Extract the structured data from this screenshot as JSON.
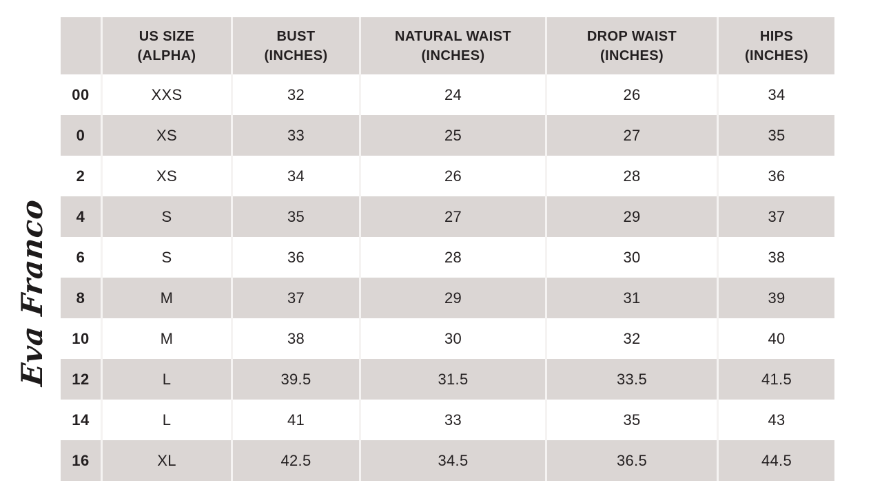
{
  "brand": {
    "name": "Eva Franco"
  },
  "table": {
    "columns": [
      {
        "name": "us-size-numeric",
        "label": ""
      },
      {
        "name": "us-size-alpha",
        "label": "US SIZE\n(ALPHA)"
      },
      {
        "name": "bust",
        "label": "BUST\n(INCHES)"
      },
      {
        "name": "natural-waist",
        "label": "NATURAL WAIST\n(INCHES)"
      },
      {
        "name": "drop-waist",
        "label": "DROP WAIST\n(INCHES)"
      },
      {
        "name": "hips",
        "label": "HIPS\n(INCHES)"
      }
    ],
    "rows": [
      {
        "cells": [
          "00",
          "XXS",
          "32",
          "24",
          "26",
          "34"
        ]
      },
      {
        "cells": [
          "0",
          "XS",
          "33",
          "25",
          "27",
          "35"
        ]
      },
      {
        "cells": [
          "2",
          "XS",
          "34",
          "26",
          "28",
          "36"
        ]
      },
      {
        "cells": [
          "4",
          "S",
          "35",
          "27",
          "29",
          "37"
        ]
      },
      {
        "cells": [
          "6",
          "S",
          "36",
          "28",
          "30",
          "38"
        ]
      },
      {
        "cells": [
          "8",
          "M",
          "37",
          "29",
          "31",
          "39"
        ]
      },
      {
        "cells": [
          "10",
          "M",
          "38",
          "30",
          "32",
          "40"
        ]
      },
      {
        "cells": [
          "12",
          "L",
          "39.5",
          "31.5",
          "33.5",
          "41.5"
        ]
      },
      {
        "cells": [
          "14",
          "L",
          "41",
          "33",
          "35",
          "43"
        ]
      },
      {
        "cells": [
          "16",
          "XL",
          "42.5",
          "34.5",
          "36.5",
          "44.5"
        ]
      }
    ]
  },
  "colors": {
    "row_shade": "#dbd6d4",
    "row_plain": "#ffffff",
    "text": "#231f20",
    "divider": "#f5f3f2"
  }
}
